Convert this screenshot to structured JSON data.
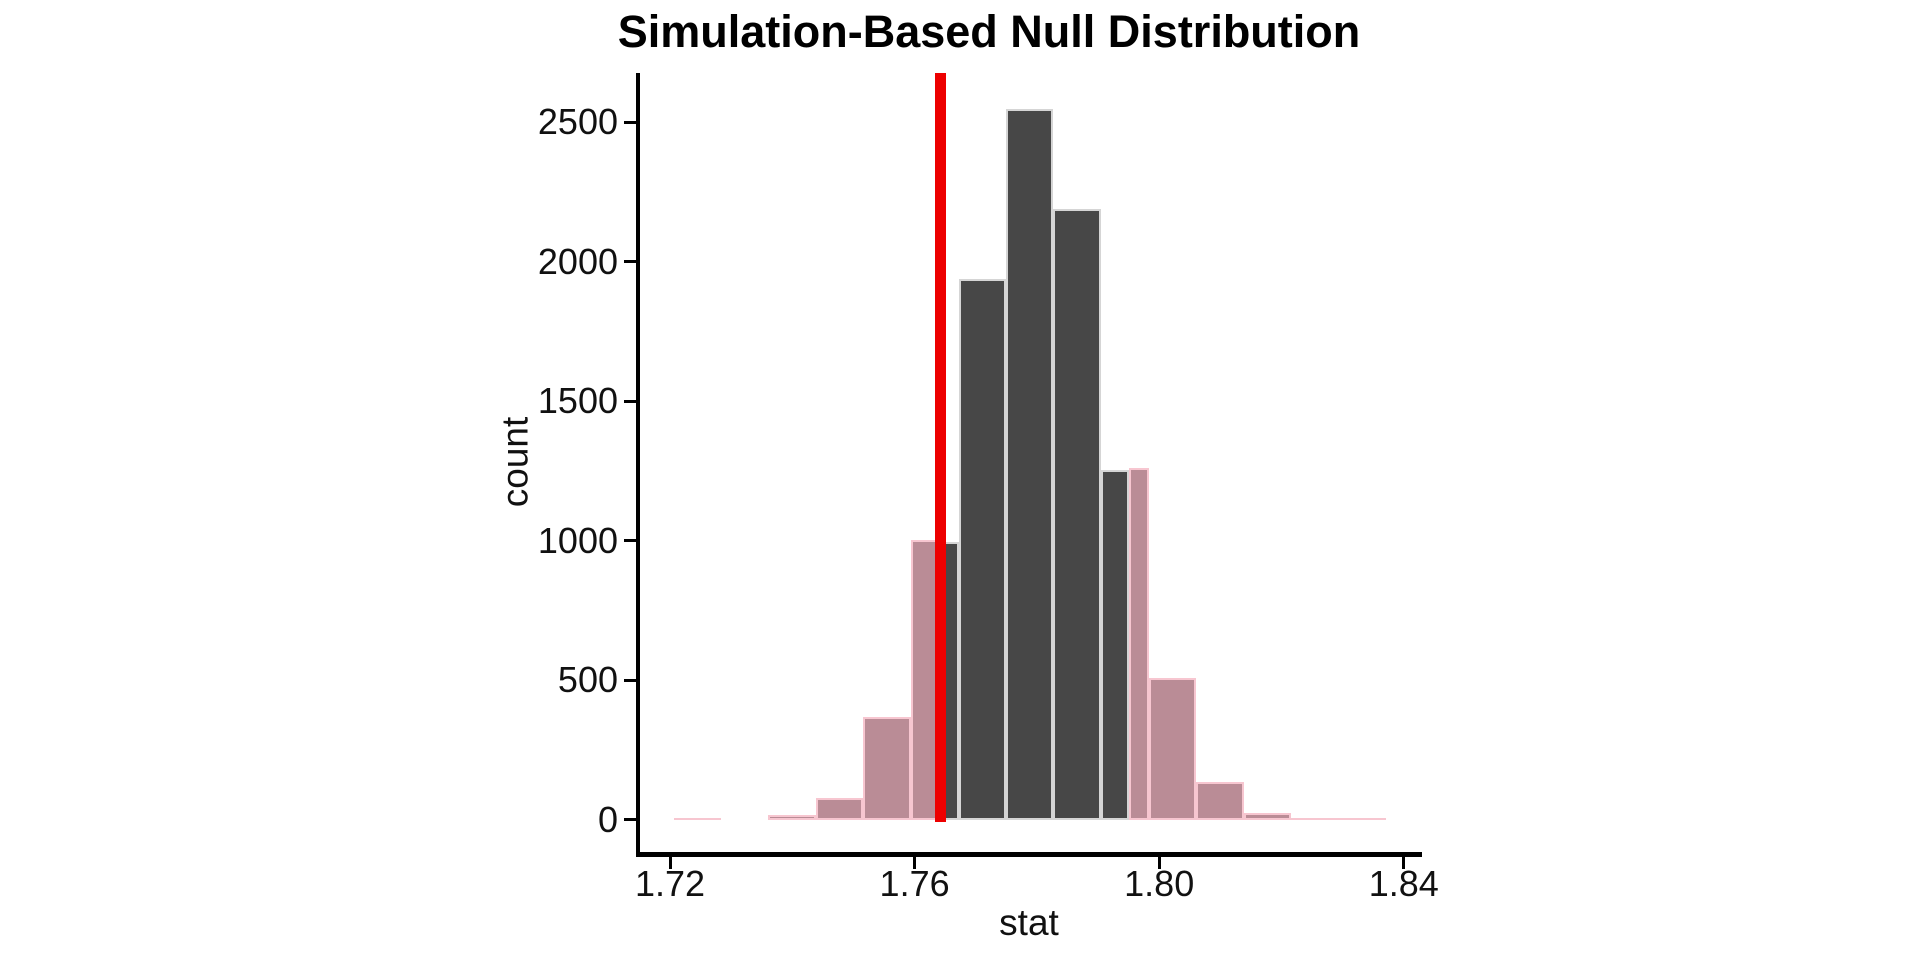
{
  "figure": {
    "background": "#ffffff"
  },
  "chart_data": {
    "type": "histogram",
    "title": "Simulation-Based Null Distribution",
    "xlabel": "stat",
    "ylabel": "count",
    "x_ticks": [
      1.72,
      1.76,
      1.8,
      1.84
    ],
    "x_tick_labels": [
      "1.72",
      "1.76",
      "1.80",
      "1.84"
    ],
    "y_ticks": [
      0,
      500,
      1000,
      1500,
      2000,
      2500
    ],
    "y_tick_labels": [
      "0",
      "500",
      "1000",
      "1500",
      "2000",
      "2500"
    ],
    "xlim": [
      1.7148,
      1.8427
    ],
    "ylim": [
      0,
      2675
    ],
    "grid": "off",
    "legend": "none",
    "bin_width": 0.0078,
    "observed_stat": 1.7642,
    "shading": "two-sided p-value tails",
    "shade_boundaries": [
      1.7642,
      1.7951
    ],
    "bars": [
      {
        "x0": 1.7206,
        "x1": 1.7283,
        "count": 3,
        "region": "tail"
      },
      {
        "x0": 1.7283,
        "x1": 1.7361,
        "count": 0,
        "region": "tail"
      },
      {
        "x0": 1.7361,
        "x1": 1.7439,
        "count": 14,
        "region": "tail"
      },
      {
        "x0": 1.7439,
        "x1": 1.7516,
        "count": 72,
        "region": "tail"
      },
      {
        "x0": 1.7516,
        "x1": 1.7594,
        "count": 365,
        "region": "tail"
      },
      {
        "x0": 1.7594,
        "x1": 1.7642,
        "count": 1000,
        "region": "tail"
      },
      {
        "x0": 1.7642,
        "x1": 1.7672,
        "count": 992,
        "region": "null"
      },
      {
        "x0": 1.7672,
        "x1": 1.775,
        "count": 1933,
        "region": "null"
      },
      {
        "x0": 1.775,
        "x1": 1.7827,
        "count": 2544,
        "region": "null"
      },
      {
        "x0": 1.7827,
        "x1": 1.7905,
        "count": 2184,
        "region": "null"
      },
      {
        "x0": 1.7905,
        "x1": 1.7951,
        "count": 1248,
        "region": "null"
      },
      {
        "x0": 1.7951,
        "x1": 1.7983,
        "count": 1255,
        "region": "tail"
      },
      {
        "x0": 1.7983,
        "x1": 1.806,
        "count": 502,
        "region": "tail"
      },
      {
        "x0": 1.806,
        "x1": 1.8138,
        "count": 132,
        "region": "tail"
      },
      {
        "x0": 1.8138,
        "x1": 1.8216,
        "count": 18,
        "region": "tail"
      },
      {
        "x0": 1.8216,
        "x1": 1.8293,
        "count": 3,
        "region": "tail"
      },
      {
        "x0": 1.8293,
        "x1": 1.8371,
        "count": 2,
        "region": "tail"
      }
    ],
    "colors": {
      "null_fill": "#474747",
      "null_border": "#D5D5D5",
      "tail_fill": "#BA8C96",
      "tail_border": "#F7C6D0",
      "observed_line": "#ED0000",
      "axis": "#000000",
      "text": "#111111"
    }
  }
}
